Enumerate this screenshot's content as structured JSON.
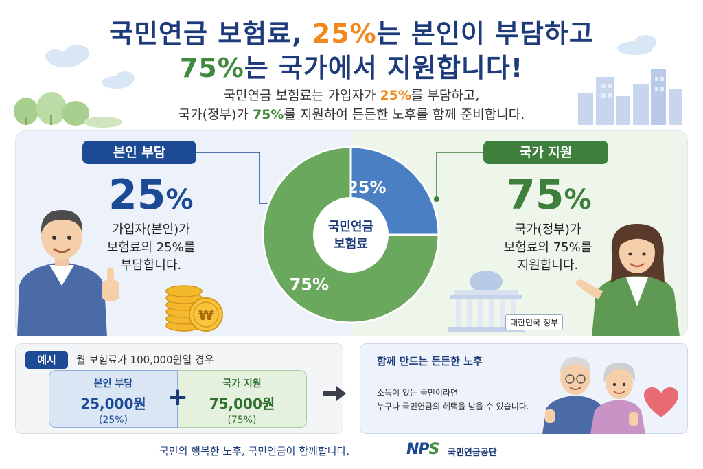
{
  "header": {
    "title_line1_a": "국민연금 보험료, ",
    "title_line1_b": "25%",
    "title_line1_c": "는 본인이 부담하고",
    "title_line2_a": "75%",
    "title_line2_b": "는 국가에서 지원합니다!",
    "subtitle_line1_a": "국민연금 보험료는 가입자가 ",
    "subtitle_line1_b": "25%",
    "subtitle_line1_c": "를 부담하고,",
    "subtitle_line2_a": "국가(정부)가 ",
    "subtitle_line2_b": "75%",
    "subtitle_line2_c": "를 지원하여 든든한 노후를 함께 준비합니다."
  },
  "left_panel": {
    "badge": "본인 부담",
    "percent_value": "25",
    "percent_sign": "%",
    "desc_line1": "가입자(본인)가",
    "desc_line2": "보험료의 25%를",
    "desc_line3": "부담합니다."
  },
  "right_panel": {
    "badge": "국가 지원",
    "percent_value": "75",
    "percent_sign": "%",
    "desc_line1": "국가(정부)가",
    "desc_line2": "보험료의 75%를",
    "desc_line3": "지원합니다.",
    "building_label": "대한민국 정부"
  },
  "chart_data": {
    "type": "pie",
    "categories": [
      "본인 부담",
      "국가 지원"
    ],
    "values": [
      25,
      75
    ],
    "slice_labels": [
      "25%",
      "75%"
    ],
    "center_label_line1": "국민연금",
    "center_label_line2": "보험료",
    "colors": [
      "#4a7fc4",
      "#6aa85e"
    ]
  },
  "example": {
    "tag": "예시",
    "label": "월 보험료가 100,000원일 경우",
    "self": {
      "head": "본인 부담",
      "amount": "25,000원",
      "pct": "(25%)"
    },
    "gov": {
      "head": "국가 지원",
      "amount": "75,000원",
      "pct": "(75%)"
    },
    "plus": "+"
  },
  "together": {
    "title": "함께 만드는 든든한 노후",
    "line1": "소득이 있는 국민이라면",
    "line2": "누구나 국민연금의 혜택을 받을 수 있습니다."
  },
  "footer": {
    "slogan": "국민의 행복한 노후, 국민연금이 함께합니다.",
    "logo_n": "N",
    "logo_p": "P",
    "logo_s": "S",
    "org_name": "국민연금공단"
  },
  "colors": {
    "navy": "#1d3b7a",
    "orange": "#f2891e",
    "green": "#3f8a3c",
    "pie_blue": "#4a7fc4",
    "pie_green": "#6aa85e"
  }
}
